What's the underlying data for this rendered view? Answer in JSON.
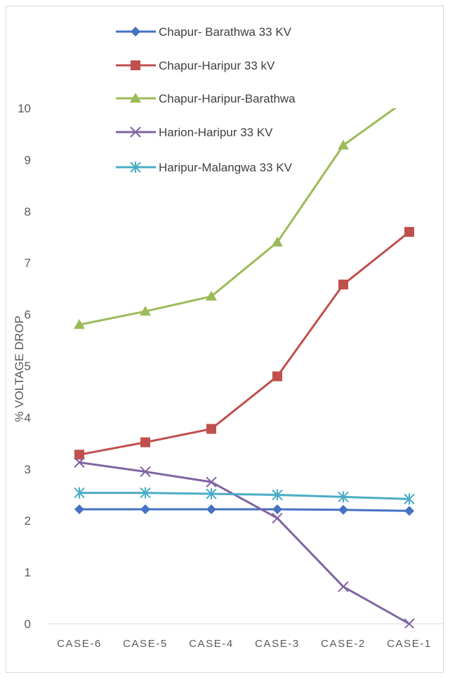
{
  "chart_data": {
    "type": "line",
    "title": "",
    "xlabel": "",
    "ylabel": "% VOLTAGE DROP",
    "categories": [
      "CASE-6",
      "CASE-5",
      "CASE-4",
      "CASE-3",
      "CASE-2",
      "CASE-1"
    ],
    "ylim": [
      0,
      10
    ],
    "yticks": [
      0,
      1,
      2,
      3,
      4,
      5,
      6,
      7,
      8,
      9,
      10
    ],
    "grid": false,
    "legend_position": "top-right",
    "series": [
      {
        "name": "Chapur- Barathwa 33 KV",
        "color": "#4472c4",
        "marker": "diamond",
        "values": [
          2.22,
          2.22,
          2.22,
          2.22,
          2.21,
          2.19
        ]
      },
      {
        "name": "Chapur-Haripur 33 kV",
        "color": "#c0504d",
        "marker": "square",
        "values": [
          3.28,
          3.52,
          3.78,
          4.8,
          6.58,
          7.6
        ]
      },
      {
        "name": "Chapur-Haripur-Barathwa",
        "color": "#9bbb59",
        "marker": "triangle",
        "values": [
          5.8,
          6.06,
          6.35,
          7.4,
          9.28,
          10.2
        ]
      },
      {
        "name": "Harion-Haripur 33 KV",
        "color": "#8064a2",
        "marker": "x",
        "values": [
          3.13,
          2.95,
          2.75,
          2.05,
          0.72,
          0.0
        ]
      },
      {
        "name": "Haripur-Malangwa 33 KV",
        "color": "#4bacc6",
        "marker": "star",
        "values": [
          2.54,
          2.54,
          2.52,
          2.5,
          2.46,
          2.42
        ]
      }
    ]
  }
}
